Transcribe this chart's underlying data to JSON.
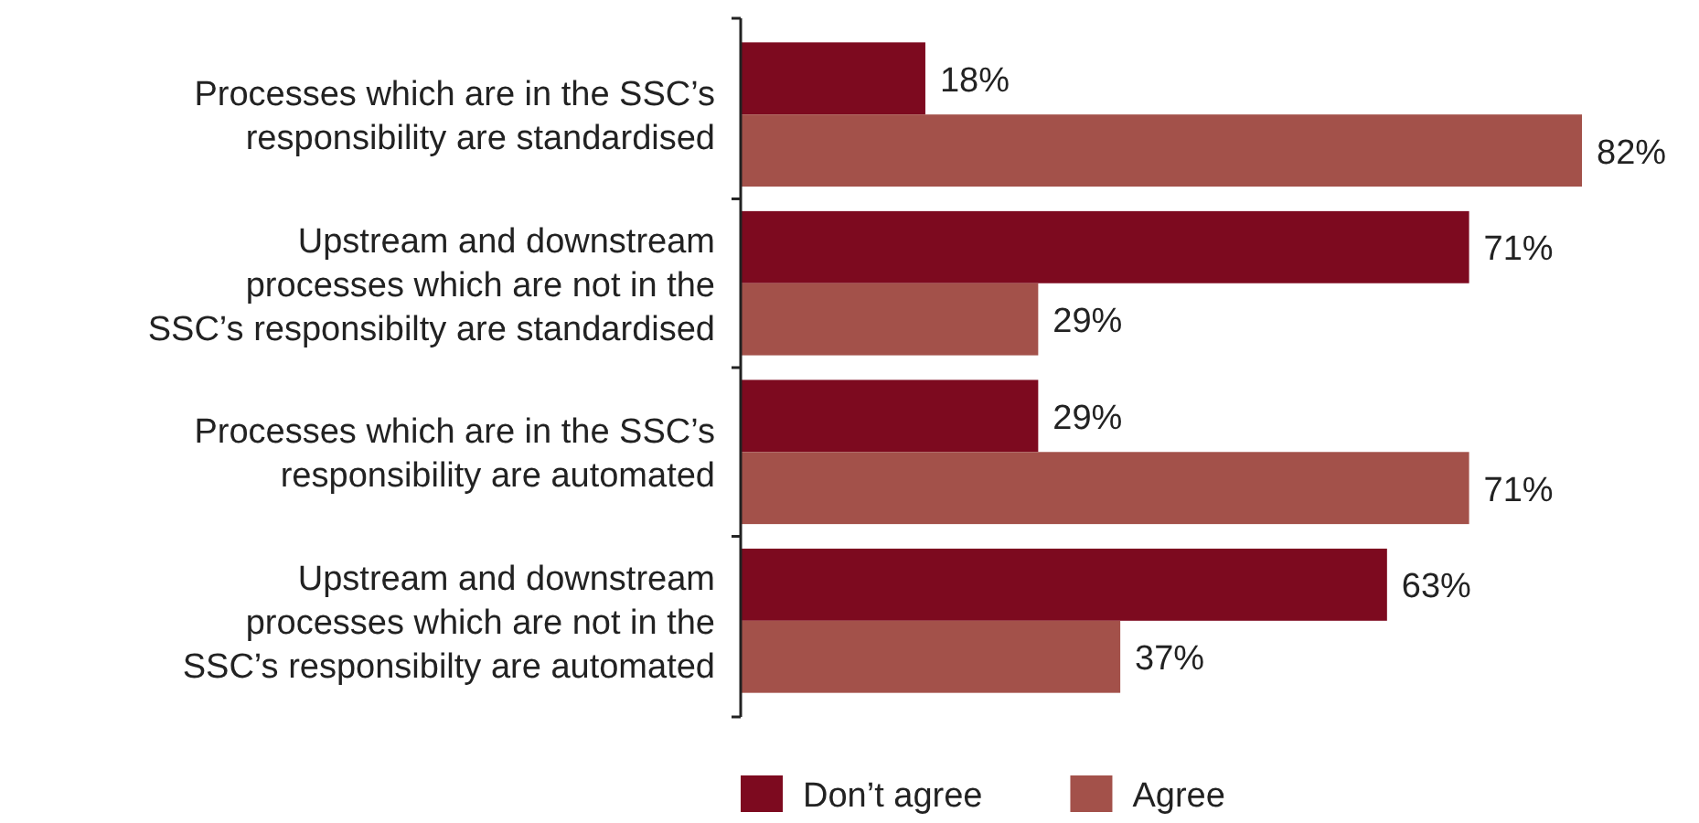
{
  "chart_data": {
    "type": "bar",
    "orientation": "horizontal",
    "categories": [
      "Processes which are in the SSC’s responsibility are standardised",
      "Upstream and downstream processes which are not in the SSC’s responsibilty are standardised",
      "Processes which are in the SSC’s responsibility are automated",
      "Upstream and downstream processes which are not in the SSC’s responsibilty are automated"
    ],
    "series": [
      {
        "name": "Don’t agree",
        "color": "#7d0a1f",
        "values": [
          18,
          71,
          29,
          63
        ],
        "value_labels": [
          "18%",
          "71%",
          "29%",
          "63%"
        ]
      },
      {
        "name": "Agree",
        "color": "#a3514a",
        "values": [
          82,
          29,
          71,
          37
        ],
        "value_labels": [
          "82%",
          "29%",
          "71%",
          "37%"
        ]
      }
    ],
    "legend": "bottom"
  }
}
